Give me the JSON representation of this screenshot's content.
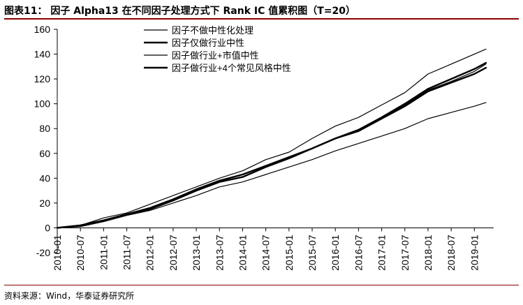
{
  "figure": {
    "title": "图表11：  因子 Alpha13 在不同因子处理方式下 Rank IC 值累积图（T=20）",
    "source": "资料来源：Wind，华泰证券研究所"
  },
  "chart_data": {
    "type": "line",
    "title": "",
    "xlabel": "",
    "ylabel": "",
    "ylim": [
      -20,
      160
    ],
    "yticks": [
      -20,
      0,
      20,
      40,
      60,
      80,
      100,
      120,
      140,
      160
    ],
    "xticks": [
      "2010-01",
      "2010-07",
      "2011-01",
      "2011-07",
      "2012-01",
      "2012-07",
      "2013-01",
      "2013-07",
      "2014-01",
      "2014-07",
      "2015-01",
      "2015-07",
      "2016-01",
      "2016-07",
      "2017-01",
      "2017-07",
      "2018-01",
      "2018-07",
      "2019-01"
    ],
    "grid": false,
    "legend_position": "top-left",
    "series": [
      {
        "name": "因子不做中性化处理",
        "color": "#000000",
        "width": 1.2,
        "points": [
          [
            0,
            0
          ],
          [
            6,
            2
          ],
          [
            12,
            8
          ],
          [
            18,
            12
          ],
          [
            24,
            19
          ],
          [
            30,
            26
          ],
          [
            36,
            33
          ],
          [
            42,
            40
          ],
          [
            48,
            46
          ],
          [
            54,
            55
          ],
          [
            60,
            61
          ],
          [
            66,
            72
          ],
          [
            72,
            82
          ],
          [
            78,
            89
          ],
          [
            84,
            99
          ],
          [
            90,
            109
          ],
          [
            96,
            124
          ],
          [
            102,
            132
          ],
          [
            108,
            140
          ],
          [
            111,
            144
          ]
        ]
      },
      {
        "name": "因子仅做行业中性",
        "color": "#000000",
        "width": 2.4,
        "points": [
          [
            0,
            0
          ],
          [
            6,
            2
          ],
          [
            12,
            6
          ],
          [
            18,
            11
          ],
          [
            24,
            15
          ],
          [
            30,
            22
          ],
          [
            36,
            30
          ],
          [
            42,
            37
          ],
          [
            48,
            41
          ],
          [
            54,
            49
          ],
          [
            60,
            56
          ],
          [
            66,
            64
          ],
          [
            72,
            72
          ],
          [
            78,
            78
          ],
          [
            84,
            88
          ],
          [
            90,
            98
          ],
          [
            96,
            110
          ],
          [
            102,
            117
          ],
          [
            108,
            124
          ],
          [
            111,
            129
          ]
        ]
      },
      {
        "name": "因子做行业+市值中性",
        "color": "#000000",
        "width": 1.2,
        "points": [
          [
            0,
            0
          ],
          [
            6,
            2
          ],
          [
            12,
            6
          ],
          [
            18,
            11
          ],
          [
            24,
            16
          ],
          [
            30,
            23
          ],
          [
            36,
            31
          ],
          [
            42,
            38
          ],
          [
            48,
            43
          ],
          [
            54,
            50
          ],
          [
            60,
            57
          ],
          [
            66,
            64
          ],
          [
            72,
            72
          ],
          [
            78,
            79
          ],
          [
            84,
            88
          ],
          [
            90,
            99
          ],
          [
            96,
            111
          ],
          [
            102,
            118
          ],
          [
            108,
            126
          ],
          [
            111,
            132
          ]
        ]
      },
      {
        "name": "因子做行业+4个常见风格中性",
        "color": "#000000",
        "width": 2.4,
        "points": [
          [
            0,
            0
          ],
          [
            6,
            2
          ],
          [
            12,
            6
          ],
          [
            18,
            11
          ],
          [
            24,
            16
          ],
          [
            30,
            23
          ],
          [
            36,
            31
          ],
          [
            42,
            38
          ],
          [
            48,
            43
          ],
          [
            54,
            50
          ],
          [
            60,
            57
          ],
          [
            66,
            64
          ],
          [
            72,
            72
          ],
          [
            78,
            79
          ],
          [
            84,
            89
          ],
          [
            90,
            100
          ],
          [
            96,
            112
          ],
          [
            102,
            120
          ],
          [
            108,
            128
          ],
          [
            111,
            133
          ]
        ]
      },
      {
        "name": "",
        "color": "#000000",
        "width": 1.2,
        "points": [
          [
            0,
            0
          ],
          [
            6,
            1
          ],
          [
            12,
            5
          ],
          [
            18,
            10
          ],
          [
            24,
            14
          ],
          [
            30,
            20
          ],
          [
            36,
            26
          ],
          [
            42,
            33
          ],
          [
            48,
            37
          ],
          [
            54,
            43
          ],
          [
            60,
            49
          ],
          [
            66,
            55
          ],
          [
            72,
            62
          ],
          [
            78,
            68
          ],
          [
            84,
            74
          ],
          [
            90,
            80
          ],
          [
            96,
            88
          ],
          [
            102,
            93
          ],
          [
            108,
            98
          ],
          [
            111,
            101
          ]
        ]
      }
    ]
  }
}
